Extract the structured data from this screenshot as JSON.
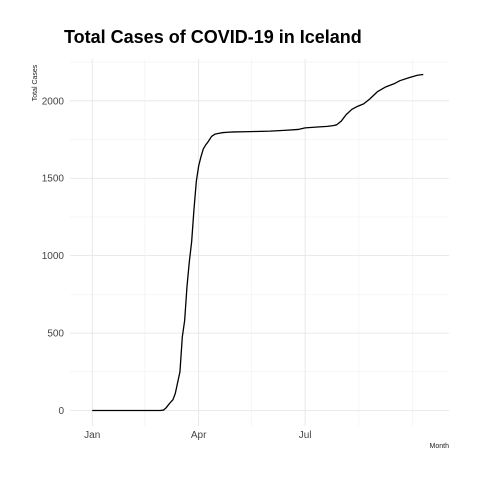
{
  "chart_data": {
    "type": "line",
    "title": "Total Cases of COVID-19 in Iceland",
    "xlabel": "Month",
    "ylabel": "Total Cases",
    "grid": true,
    "x_ticks": [
      "Jan",
      "Apr",
      "Jul"
    ],
    "y_ticks": [
      0,
      500,
      1000,
      1500,
      2000
    ],
    "ylim": [
      -100,
      2270
    ],
    "xlim": [
      "2019-12-13",
      "2020-11-01"
    ],
    "series": [
      {
        "x": [
          "2020-01-01",
          "2020-02-01",
          "2020-02-28",
          "2020-03-02",
          "2020-03-04",
          "2020-03-07",
          "2020-03-10",
          "2020-03-12",
          "2020-03-14",
          "2020-03-16",
          "2020-03-18",
          "2020-03-20",
          "2020-03-22",
          "2020-03-24",
          "2020-03-26",
          "2020-03-28",
          "2020-03-30",
          "2020-04-01",
          "2020-04-03",
          "2020-04-05",
          "2020-04-07",
          "2020-04-09",
          "2020-04-12",
          "2020-04-15",
          "2020-04-18",
          "2020-04-22",
          "2020-04-26",
          "2020-05-01",
          "2020-05-10",
          "2020-05-20",
          "2020-06-01",
          "2020-06-15",
          "2020-06-25",
          "2020-07-01",
          "2020-07-10",
          "2020-07-20",
          "2020-07-25",
          "2020-07-28",
          "2020-08-01",
          "2020-08-05",
          "2020-08-10",
          "2020-08-15",
          "2020-08-20",
          "2020-08-25",
          "2020-09-01",
          "2020-09-08",
          "2020-09-15",
          "2020-09-20",
          "2020-09-28",
          "2020-10-05",
          "2020-10-10"
        ],
        "y": [
          0,
          0,
          0,
          3,
          16,
          45,
          70,
          110,
          180,
          250,
          475,
          580,
          800,
          960,
          1090,
          1300,
          1480,
          1580,
          1640,
          1690,
          1715,
          1735,
          1770,
          1785,
          1790,
          1795,
          1797,
          1799,
          1800,
          1802,
          1804,
          1810,
          1815,
          1825,
          1830,
          1835,
          1840,
          1845,
          1870,
          1910,
          1945,
          1965,
          1980,
          2010,
          2060,
          2090,
          2110,
          2130,
          2150,
          2165,
          2170
        ]
      }
    ]
  }
}
